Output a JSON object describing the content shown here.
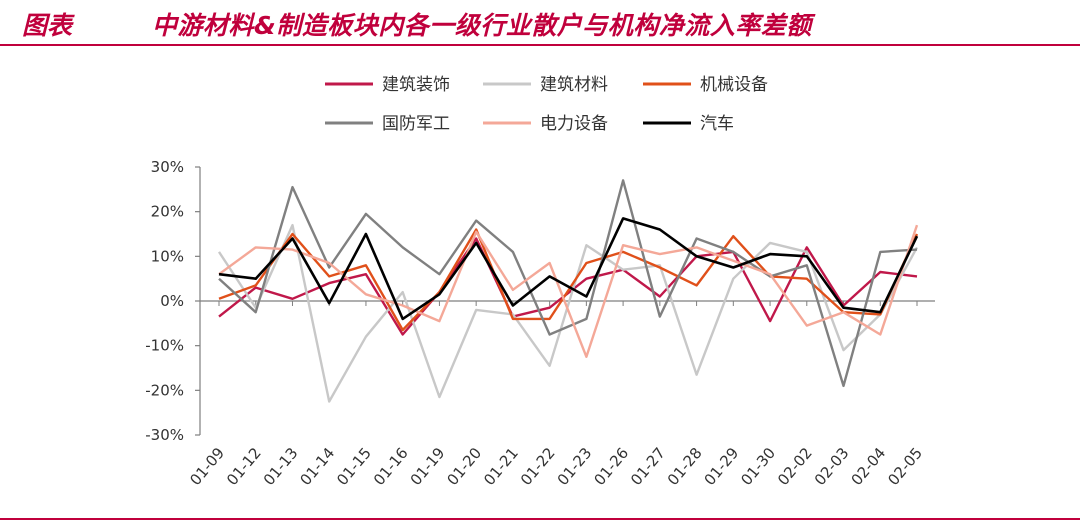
{
  "header": {
    "label": "图表",
    "title": "中游材料&制造板块内各一级行业散户与机构净流入率差额"
  },
  "chart_data": {
    "type": "line",
    "categories": [
      "01-09",
      "01-12",
      "01-13",
      "01-14",
      "01-15",
      "01-16",
      "01-19",
      "01-20",
      "01-21",
      "01-22",
      "01-23",
      "01-26",
      "01-27",
      "01-28",
      "01-29",
      "01-30",
      "02-02",
      "02-03",
      "02-04",
      "02-05"
    ],
    "y_ticks": [
      "30%",
      "20%",
      "10%",
      "0%",
      "-10%",
      "-20%",
      "-30%"
    ],
    "ylim": [
      -30,
      30
    ],
    "y_unit": "%",
    "grid": false,
    "legend_position": "top",
    "series": [
      {
        "name": "建筑装饰",
        "color": "#c0184a",
        "values": [
          -3.5,
          3,
          0.5,
          4,
          6,
          -7.5,
          2,
          14,
          -3.5,
          -1.5,
          5,
          7,
          1,
          10,
          11,
          -4.5,
          12,
          -1,
          6.5,
          5.5
        ]
      },
      {
        "name": "建筑材料",
        "color": "#c8c8c8",
        "values": [
          11,
          -1.5,
          17,
          -22.5,
          -8,
          2,
          -21.5,
          -2,
          -3,
          -14.5,
          12.5,
          7,
          8,
          -16.5,
          5,
          13,
          11,
          -11,
          -3,
          12
        ]
      },
      {
        "name": "机械设备",
        "color": "#e0501a",
        "values": [
          0.5,
          3.5,
          15,
          5.5,
          8,
          -6.5,
          2,
          16,
          -4,
          -4,
          8.5,
          11,
          7.5,
          3.5,
          14.5,
          5.5,
          5,
          -2.5,
          -3,
          15
        ]
      },
      {
        "name": "国防军工",
        "color": "#808080",
        "values": [
          5,
          -2.5,
          25.5,
          7.5,
          19.5,
          12,
          6,
          18,
          11,
          -7.5,
          -4,
          27,
          -3.5,
          14,
          11,
          5.5,
          8,
          -19,
          11,
          11.5
        ]
      },
      {
        "name": "电力设备",
        "color": "#f4a898",
        "values": [
          6,
          12,
          11.5,
          8.5,
          1.5,
          -1,
          -4.5,
          15.5,
          2.5,
          8.5,
          -12.5,
          12.5,
          10.5,
          12,
          9,
          6,
          -5.5,
          -2.5,
          -7.5,
          17
        ]
      },
      {
        "name": "汽车",
        "color": "#000000",
        "values": [
          6,
          5,
          14,
          -0.5,
          15,
          -4,
          1.5,
          13,
          -1,
          5.5,
          1,
          18.5,
          16,
          10,
          7.5,
          10.5,
          10,
          -1.5,
          -2.5,
          14.5
        ]
      }
    ]
  }
}
